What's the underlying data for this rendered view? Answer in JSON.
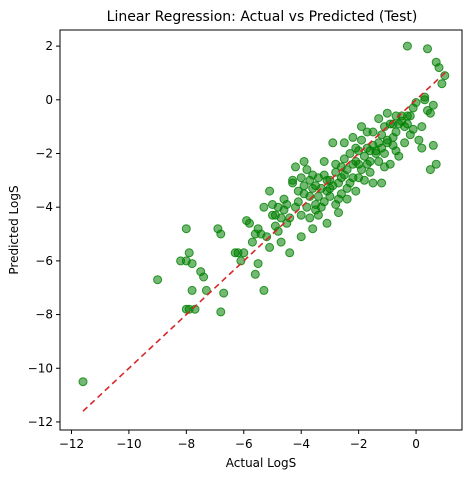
{
  "chart_data": {
    "type": "scatter",
    "title": "Linear Regression: Actual vs Predicted (Test)",
    "xlabel": "Actual LogS",
    "ylabel": "Predicted LogS",
    "xlim": [
      -12.4,
      1.6
    ],
    "ylim": [
      -12.3,
      2.6
    ],
    "xticks": [
      -12,
      -10,
      -8,
      -6,
      -4,
      -2,
      0
    ],
    "yticks": [
      -12,
      -10,
      -8,
      -6,
      -4,
      -2,
      0,
      2
    ],
    "grid": false,
    "legend": "none",
    "colors": {
      "points": "#008000",
      "reference_line": "#d62728"
    },
    "reference_line": {
      "x": [
        -11.6,
        1.1
      ],
      "y": [
        -11.6,
        1.1
      ],
      "style": "dashed"
    },
    "points": [
      [
        -11.6,
        -10.5
      ],
      [
        -9.0,
        -6.7
      ],
      [
        -8.2,
        -6.0
      ],
      [
        -8.0,
        -6.0
      ],
      [
        -7.9,
        -5.7
      ],
      [
        -7.8,
        -6.1
      ],
      [
        -8.0,
        -4.8
      ],
      [
        -7.5,
        -6.4
      ],
      [
        -7.4,
        -6.6
      ],
      [
        -7.3,
        -7.1
      ],
      [
        -7.8,
        -7.1
      ],
      [
        -7.9,
        -7.8
      ],
      [
        -8.0,
        -7.8
      ],
      [
        -7.7,
        -7.8
      ],
      [
        -6.8,
        -7.9
      ],
      [
        -6.9,
        -4.8
      ],
      [
        -6.8,
        -5.0
      ],
      [
        -6.7,
        -7.2
      ],
      [
        -6.2,
        -5.7
      ],
      [
        -6.0,
        -5.7
      ],
      [
        -6.1,
        -6.0
      ],
      [
        -5.9,
        -4.5
      ],
      [
        -5.7,
        -5.3
      ],
      [
        -5.6,
        -5.0
      ],
      [
        -5.5,
        -6.1
      ],
      [
        -5.6,
        -6.5
      ],
      [
        -5.3,
        -7.1
      ],
      [
        -5.4,
        -5.0
      ],
      [
        -5.2,
        -5.1
      ],
      [
        -5.0,
        -4.3
      ],
      [
        -4.9,
        -4.7
      ],
      [
        -4.8,
        -4.0
      ],
      [
        -4.7,
        -5.3
      ],
      [
        -5.1,
        -3.4
      ],
      [
        -4.5,
        -3.9
      ],
      [
        -4.4,
        -4.4
      ],
      [
        -4.3,
        -3.1
      ],
      [
        -4.2,
        -2.5
      ],
      [
        -4.0,
        -2.9
      ],
      [
        -3.9,
        -3.2
      ],
      [
        -3.8,
        -4.0
      ],
      [
        -3.7,
        -3.6
      ],
      [
        -3.6,
        -3.3
      ],
      [
        -3.5,
        -4.1
      ],
      [
        -3.4,
        -2.9
      ],
      [
        -3.3,
        -3.3
      ],
      [
        -3.2,
        -3.8
      ],
      [
        -3.1,
        -3.4
      ],
      [
        -3.0,
        -3.0
      ],
      [
        -2.9,
        -3.2
      ],
      [
        -2.8,
        -2.7
      ],
      [
        -2.7,
        -3.1
      ],
      [
        -2.6,
        -3.5
      ],
      [
        -2.5,
        -2.2
      ],
      [
        -2.4,
        -2.6
      ],
      [
        -2.3,
        -2.0
      ],
      [
        -2.2,
        -2.9
      ],
      [
        -2.1,
        -1.8
      ],
      [
        -2.0,
        -2.4
      ],
      [
        -1.9,
        -1.5
      ],
      [
        -1.8,
        -2.1
      ],
      [
        -1.7,
        -1.8
      ],
      [
        -1.6,
        -2.3
      ],
      [
        -1.5,
        -1.2
      ],
      [
        -1.4,
        -1.9
      ],
      [
        -1.3,
        -1.6
      ],
      [
        -1.2,
        -1.3
      ],
      [
        -1.1,
        -2.0
      ],
      [
        -1.0,
        -1.5
      ],
      [
        -0.9,
        -0.9
      ],
      [
        -0.8,
        -1.7
      ],
      [
        -0.7,
        -1.2
      ],
      [
        -0.6,
        -2.1
      ],
      [
        -0.5,
        -0.8
      ],
      [
        -0.4,
        -1.0
      ],
      [
        -0.3,
        -0.6
      ],
      [
        -0.2,
        -1.3
      ],
      [
        -0.1,
        -0.3
      ],
      [
        0.0,
        -0.1
      ],
      [
        0.1,
        -1.5
      ],
      [
        0.2,
        -1.0
      ],
      [
        0.3,
        0.0
      ],
      [
        0.4,
        -0.4
      ],
      [
        0.5,
        -2.6
      ],
      [
        0.6,
        -1.7
      ],
      [
        0.7,
        -2.4
      ],
      [
        0.8,
        1.2
      ],
      [
        1.0,
        0.9
      ],
      [
        0.9,
        0.6
      ],
      [
        -0.3,
        2.0
      ],
      [
        0.4,
        1.9
      ],
      [
        0.7,
        1.4
      ],
      [
        -4.6,
        -3.7
      ],
      [
        -4.1,
        -3.4
      ],
      [
        -3.7,
        -4.4
      ],
      [
        -3.4,
        -4.3
      ],
      [
        -3.0,
        -3.6
      ],
      [
        -2.6,
        -2.9
      ],
      [
        -2.2,
        -2.4
      ],
      [
        -1.9,
        -2.6
      ],
      [
        -1.5,
        -3.1
      ],
      [
        -1.2,
        -3.1
      ],
      [
        -0.8,
        -0.9
      ],
      [
        -0.5,
        -0.6
      ],
      [
        -4.4,
        -5.7
      ],
      [
        -4.0,
        -4.3
      ],
      [
        -3.8,
        -2.6
      ],
      [
        -3.5,
        -3.2
      ],
      [
        -3.1,
        -3.0
      ],
      [
        -2.8,
        -3.9
      ],
      [
        -2.4,
        -3.7
      ],
      [
        -2.1,
        -3.4
      ],
      [
        -1.8,
        -3.0
      ],
      [
        -1.4,
        -2.0
      ],
      [
        -1.0,
        -1.6
      ],
      [
        -0.7,
        -1.9
      ],
      [
        -0.3,
        -0.9
      ],
      [
        -4.8,
        -4.9
      ],
      [
        -4.3,
        -3.0
      ],
      [
        -3.9,
        -2.3
      ],
      [
        -3.6,
        -2.8
      ],
      [
        -3.2,
        -2.3
      ],
      [
        -2.9,
        -1.6
      ],
      [
        -2.5,
        -1.6
      ],
      [
        -2.2,
        -1.4
      ],
      [
        -1.9,
        -1.0
      ],
      [
        -1.6,
        -1.9
      ],
      [
        -1.3,
        -2.3
      ],
      [
        -0.9,
        -2.4
      ],
      [
        -5.3,
        -4.0
      ],
      [
        -5.0,
        -3.9
      ],
      [
        -4.6,
        -4.1
      ],
      [
        -4.2,
        -4.0
      ],
      [
        -3.9,
        -3.5
      ],
      [
        -3.5,
        -3.9
      ],
      [
        -3.2,
        -2.8
      ],
      [
        -2.8,
        -2.4
      ],
      [
        -2.5,
        -2.8
      ],
      [
        -2.1,
        -2.3
      ],
      [
        -1.7,
        -1.2
      ],
      [
        -1.3,
        -0.7
      ],
      [
        -1.0,
        -0.5
      ],
      [
        -0.6,
        -0.9
      ],
      [
        -0.1,
        -1.1
      ],
      [
        0.2,
        -1.8
      ],
      [
        0.5,
        -0.5
      ],
      [
        -5.5,
        -4.8
      ],
      [
        -4.9,
        -4.3
      ],
      [
        -4.5,
        -4.6
      ],
      [
        -4.1,
        -3.8
      ],
      [
        -3.3,
        -4.0
      ],
      [
        -2.7,
        -3.7
      ],
      [
        -2.3,
        -3.1
      ],
      [
        -1.7,
        -2.4
      ],
      [
        -1.1,
        -2.5
      ],
      [
        -0.4,
        -1.6
      ],
      [
        -3.7,
        -3.0
      ],
      [
        -3.4,
        -3.6
      ],
      [
        -3.0,
        -3.3
      ],
      [
        -2.6,
        -2.5
      ],
      [
        -2.0,
        -1.9
      ],
      [
        -1.5,
        -1.7
      ],
      [
        -1.1,
        -1.0
      ],
      [
        -0.7,
        -0.6
      ],
      [
        -6.3,
        -5.7
      ],
      [
        -5.8,
        -4.6
      ],
      [
        -5.1,
        -5.5
      ],
      [
        -4.7,
        -4.4
      ],
      [
        -4.0,
        -5.1
      ],
      [
        -3.6,
        -4.8
      ],
      [
        -3.1,
        -4.6
      ],
      [
        -2.7,
        -4.2
      ],
      [
        -2.4,
        -3.3
      ],
      [
        -2.0,
        -2.9
      ],
      [
        -1.6,
        -2.7
      ],
      [
        -1.2,
        -1.8
      ],
      [
        -0.8,
        -1.4
      ],
      [
        -0.2,
        -0.6
      ],
      [
        0.3,
        0.1
      ],
      [
        0.6,
        -0.2
      ]
    ]
  }
}
